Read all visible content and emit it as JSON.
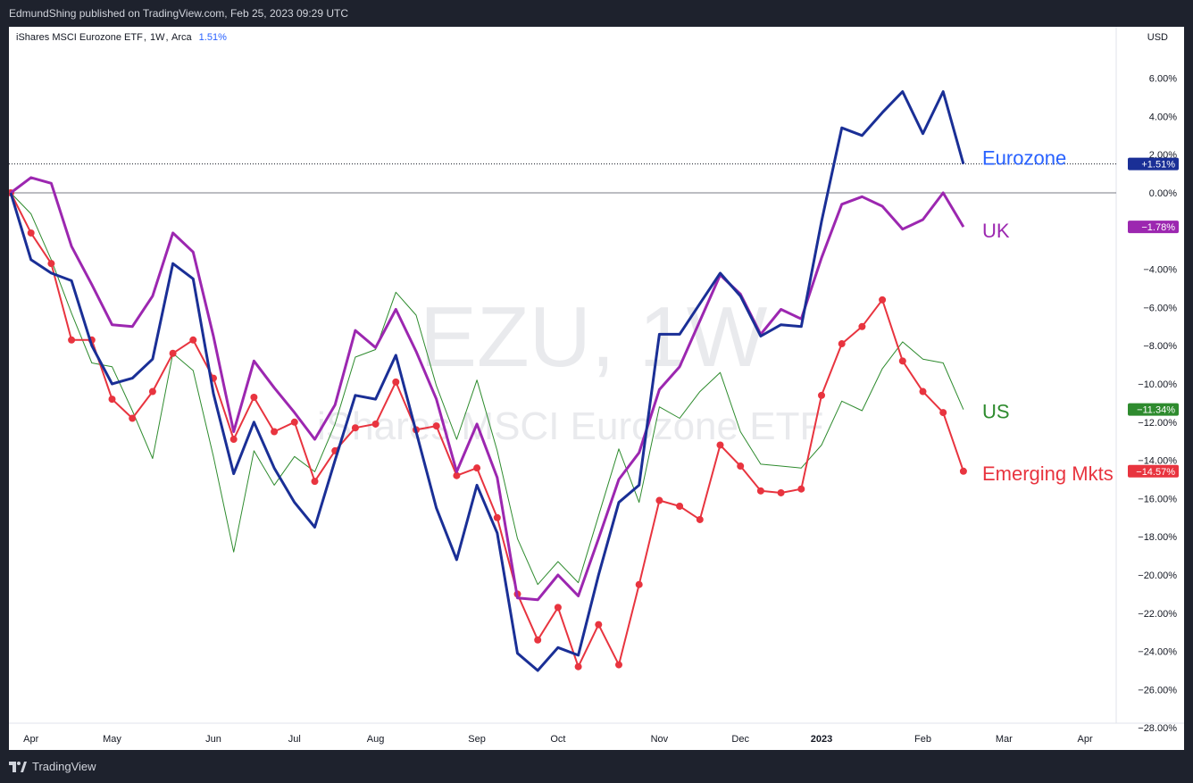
{
  "header": {
    "published": "EdmundShing published on TradingView.com, Feb 25, 2023 09:29 UTC"
  },
  "legend": {
    "symbol": "iShares MSCI Eurozone ETF",
    "interval": "1W",
    "exchange": "Arca",
    "change": "1.51%"
  },
  "currency": "USD",
  "watermark": {
    "big": "EZU, 1W",
    "sub": "iShares MSCI Eurozone ETF"
  },
  "footer": {
    "brand": "TradingView",
    "logo_icon": "tradingview-logo-icon"
  },
  "chart_data": {
    "type": "line",
    "x": [
      "Mar 25",
      "Apr 1",
      "Apr 8",
      "Apr 15",
      "Apr 22",
      "Apr 29",
      "May 6",
      "May 13",
      "May 20",
      "May 27",
      "Jun 3",
      "Jun 10",
      "Jun 17",
      "Jun 24",
      "Jul 1",
      "Jul 8",
      "Jul 15",
      "Jul 22",
      "Jul 29",
      "Aug 5",
      "Aug 12",
      "Aug 19",
      "Aug 26",
      "Sep 2",
      "Sep 9",
      "Sep 16",
      "Sep 23",
      "Sep 30",
      "Oct 7",
      "Oct 14",
      "Oct 21",
      "Oct 28",
      "Nov 4",
      "Nov 11",
      "Nov 18",
      "Nov 25",
      "Dec 2",
      "Dec 9",
      "Dec 16",
      "Dec 23",
      "Dec 30",
      "Jan 6",
      "Jan 13",
      "Jan 20",
      "Jan 27",
      "Feb 3",
      "Feb 10",
      "Feb 17"
    ],
    "x_tick_labels": [
      "Apr",
      "May",
      "Jun",
      "Jul",
      "Aug",
      "Sep",
      "Oct",
      "Nov",
      "Dec",
      "2023",
      "Feb",
      "Mar",
      "Apr"
    ],
    "x_tick_index": [
      1,
      5,
      10,
      14,
      18,
      23,
      27,
      32,
      36,
      40,
      45,
      49,
      53
    ],
    "ylim": [
      -28,
      7
    ],
    "yticks": [
      6,
      4,
      2,
      0,
      -4,
      -6,
      -8,
      -10,
      -12,
      -14,
      -16,
      -18,
      -20,
      -22,
      -24,
      -26,
      -28
    ],
    "ytick_labels": [
      "6.00%",
      "4.00%",
      "2.00%",
      "0.00%",
      "−4.00%",
      "−6.00%",
      "−8.00%",
      "−10.00%",
      "−12.00%",
      "−14.00%",
      "−16.00%",
      "−18.00%",
      "−20.00%",
      "−22.00%",
      "−24.00%",
      "−26.00%",
      "−28.00%"
    ],
    "zero_line": true,
    "grid": false,
    "series": [
      {
        "name": "Eurozone",
        "color": "#1a2f96",
        "line_width": 3,
        "markers": false,
        "price_label": "+1.51%",
        "values": [
          0,
          -3.5,
          -4.2,
          -4.6,
          -8,
          -10,
          -9.7,
          -8.7,
          -3.7,
          -4.5,
          -10.5,
          -14.7,
          -12,
          -14.4,
          -16.2,
          -17.5,
          -14,
          -10.6,
          -10.8,
          -8.5,
          -12.5,
          -16.5,
          -19.2,
          -15.3,
          -17.8,
          -24.1,
          -25,
          -23.8,
          -24.2,
          -20,
          -16.2,
          -15.3,
          -7.4,
          -7.4,
          -5.8,
          -4.2,
          -5.4,
          -7.5,
          -6.9,
          -7,
          -1.5,
          3.4,
          3,
          4.2,
          5.3,
          3.1,
          5.3,
          1.51
        ]
      },
      {
        "name": "UK",
        "color": "#9c27b0",
        "line_width": 3,
        "markers": false,
        "price_label": "−1.78%",
        "values": [
          0,
          0.8,
          0.5,
          -2.8,
          -4.8,
          -6.9,
          -7,
          -5.4,
          -2.1,
          -3.1,
          -7.5,
          -12.5,
          -8.8,
          -10.2,
          -11.5,
          -12.9,
          -11.1,
          -7.2,
          -8.1,
          -6.1,
          -8.3,
          -10.8,
          -14.6,
          -12.1,
          -14.9,
          -21.2,
          -21.3,
          -20,
          -21.1,
          -18.1,
          -15,
          -13.6,
          -10.3,
          -9.1,
          -6.7,
          -4.3,
          -5.3,
          -7.4,
          -6.1,
          -6.6,
          -3.4,
          -0.6,
          -0.2,
          -0.7,
          -1.9,
          -1.4,
          0,
          -1.78
        ]
      },
      {
        "name": "US",
        "color": "#2e8b2e",
        "line_width": 1,
        "markers": false,
        "price_label": "−11.34%",
        "values": [
          0,
          -1.1,
          -3.5,
          -6.3,
          -8.9,
          -9.1,
          -11.4,
          -13.9,
          -8.4,
          -9.3,
          -13.8,
          -18.8,
          -13.5,
          -15.3,
          -13.8,
          -14.6,
          -12.1,
          -8.6,
          -8.2,
          -5.2,
          -6.4,
          -10.1,
          -12.9,
          -9.8,
          -13.5,
          -18.1,
          -20.5,
          -19.3,
          -20.4,
          -16.9,
          -13.4,
          -16.2,
          -11.2,
          -11.8,
          -10.4,
          -9.4,
          -12.5,
          -14.2,
          -14.3,
          -14.4,
          -13.2,
          -10.9,
          -11.4,
          -9.2,
          -7.8,
          -8.7,
          -8.9,
          -11.34
        ]
      },
      {
        "name": "Emerging Mkts",
        "color": "#e8343f",
        "line_width": 2,
        "markers": true,
        "price_label": "−14.57%",
        "values": [
          0,
          -2.1,
          -3.7,
          -7.7,
          -7.7,
          -10.8,
          -11.8,
          -10.4,
          -8.4,
          -7.7,
          -9.7,
          -12.9,
          -10.7,
          -12.5,
          -12,
          -15.1,
          -13.5,
          -12.3,
          -12.1,
          -9.9,
          -12.4,
          -12.2,
          -14.8,
          -14.4,
          -17,
          -21,
          -23.4,
          -21.7,
          -24.8,
          -22.6,
          -24.7,
          -20.5,
          -16.1,
          -16.4,
          -17.1,
          -13.2,
          -14.3,
          -15.6,
          -15.7,
          -15.5,
          -10.6,
          -7.9,
          -7,
          -5.6,
          -8.8,
          -10.4,
          -11.5,
          -14.57
        ]
      }
    ],
    "price_line": {
      "value": 1.51,
      "style": "dotted"
    }
  }
}
